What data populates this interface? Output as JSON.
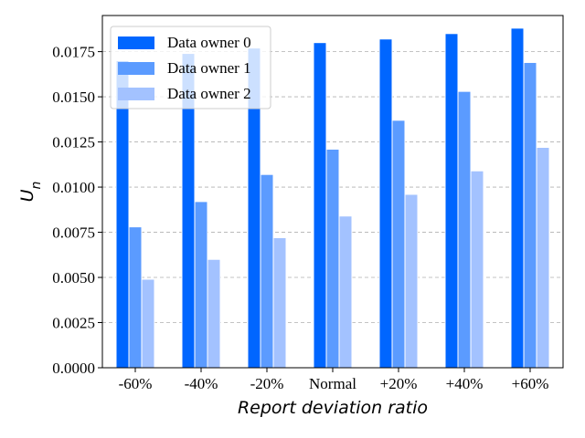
{
  "chart_data": {
    "type": "bar",
    "categories": [
      "-60%",
      "-40%",
      "-20%",
      "Normal",
      "+20%",
      "+40%",
      "+60%"
    ],
    "series": [
      {
        "name": "Data owner 0",
        "color": "#0066ff",
        "values": [
          0.017,
          0.0174,
          0.0177,
          0.018,
          0.0182,
          0.0185,
          0.0188
        ]
      },
      {
        "name": "Data owner 1",
        "color": "#5b9bff",
        "values": [
          0.0078,
          0.0092,
          0.0107,
          0.0121,
          0.0137,
          0.0153,
          0.0169
        ]
      },
      {
        "name": "Data owner 2",
        "color": "#a3c2ff",
        "values": [
          0.0049,
          0.006,
          0.0072,
          0.0084,
          0.0096,
          0.0109,
          0.0122
        ]
      }
    ],
    "xlabel": "Report deviation ratio",
    "ylabel": "U_n",
    "ylim": [
      0,
      0.0195
    ],
    "yticks": [
      "0.0000",
      "0.0025",
      "0.0050",
      "0.0075",
      "0.0100",
      "0.0125",
      "0.0150",
      "0.0175"
    ],
    "grid": "horizontal dashed",
    "legend_position": "top-left"
  }
}
